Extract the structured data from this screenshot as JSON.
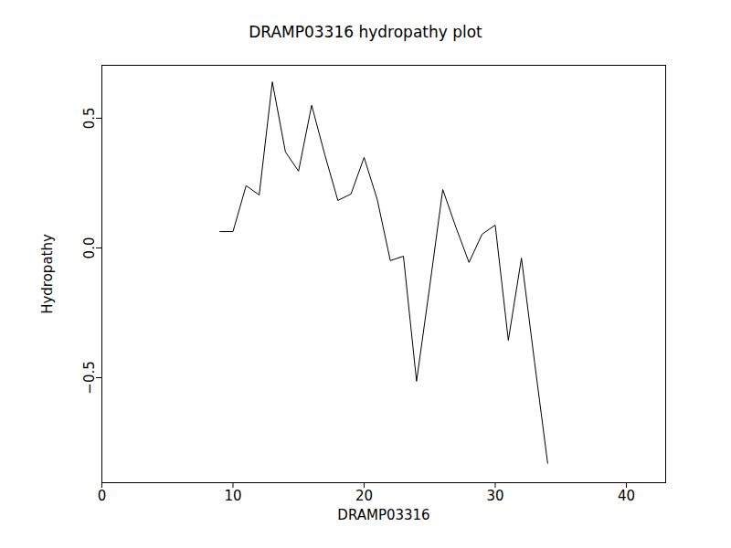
{
  "chart_data": {
    "type": "line",
    "title": "DRAMP03316 hydropathy plot",
    "x_label": "DRAMP03316",
    "y_label": "Hydropathy",
    "x": [
      9,
      10,
      11,
      12,
      13,
      14,
      15,
      16,
      17,
      18,
      19,
      20,
      21,
      22,
      23,
      24,
      25,
      26,
      27,
      28,
      29,
      30,
      31,
      32,
      33,
      34
    ],
    "values": [
      0.063,
      0.063,
      0.24,
      0.204,
      0.64,
      0.37,
      0.296,
      0.55,
      0.36,
      0.183,
      0.208,
      0.349,
      0.187,
      -0.049,
      -0.032,
      -0.514,
      -0.15,
      0.225,
      0.08,
      -0.056,
      0.053,
      0.088,
      -0.356,
      -0.039,
      -0.44,
      -0.83
    ],
    "color": "#000000",
    "xlim": [
      0,
      43
    ],
    "xticks": [
      0,
      10,
      20,
      30,
      40
    ],
    "ylim": [
      -0.905,
      0.704
    ],
    "yticks": [
      {
        "value": -0.5,
        "label": "−0.5"
      },
      {
        "value": 0,
        "label": "0.0"
      },
      {
        "value": 0.5,
        "label": "0.5"
      }
    ],
    "grid": false
  }
}
